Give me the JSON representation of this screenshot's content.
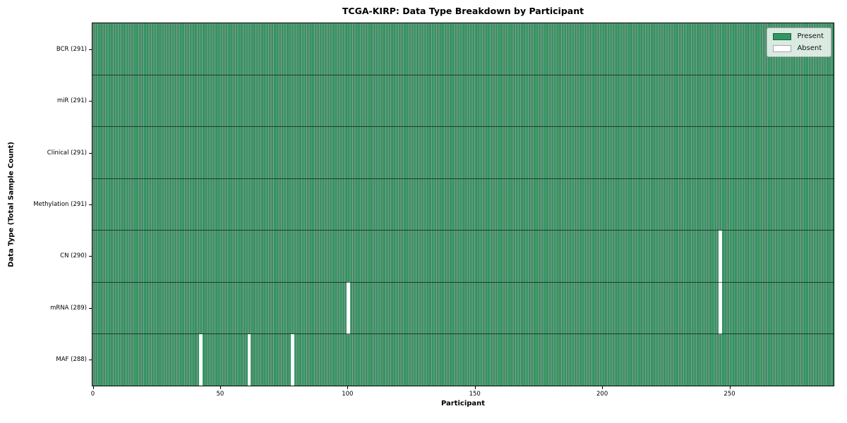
{
  "chart_data": {
    "type": "heatmap",
    "title": "TCGA-KIRP: Data Type Breakdown by Participant",
    "xlabel": "Participant",
    "ylabel": "Data Type (Total Sample Count)",
    "x_ticks": [
      0,
      50,
      100,
      150,
      200,
      250
    ],
    "x_range": [
      0,
      291
    ],
    "n_participants": 291,
    "grid": false,
    "legend": {
      "position": "upper-right",
      "entries": [
        {
          "label": "Present",
          "color": "#319661"
        },
        {
          "label": "Absent",
          "color": "#ffffff"
        }
      ]
    },
    "rows": [
      {
        "label": "BCR (291)",
        "data_type": "BCR",
        "total": 291,
        "absent_participants": []
      },
      {
        "label": "miR (291)",
        "data_type": "miR",
        "total": 291,
        "absent_participants": []
      },
      {
        "label": "Clinical (291)",
        "data_type": "Clinical",
        "total": 291,
        "absent_participants": []
      },
      {
        "label": "Methylation (291)",
        "data_type": "Methylation",
        "total": 291,
        "absent_participants": []
      },
      {
        "label": "CN (290)",
        "data_type": "CN",
        "total": 290,
        "absent_participants": [
          246
        ]
      },
      {
        "label": "mRNA (289)",
        "data_type": "mRNA",
        "total": 289,
        "absent_participants": [
          100,
          246
        ]
      },
      {
        "label": "MAF (288)",
        "data_type": "MAF",
        "total": 288,
        "absent_participants": [
          42,
          61,
          78
        ]
      }
    ],
    "colors": {
      "present": "#319661",
      "absent": "#ffffff"
    }
  }
}
